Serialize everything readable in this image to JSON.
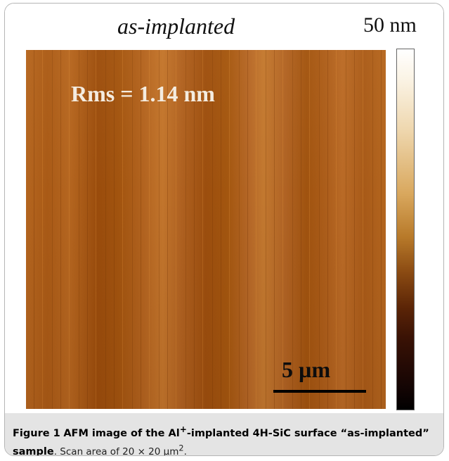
{
  "figure": {
    "panel_title": "as-implanted",
    "colorbar_max_label": "50 nm",
    "rms_label": "Rms = 1.14 nm",
    "scalebar_label": "5 µm"
  },
  "caption": {
    "label": "Figure 1",
    "title_prefix": "AFM image of the Al",
    "title_superscript": "+",
    "title_suffix": "-implanted 4H-SiC surface “as-implanted” sample",
    "rest_prefix": ". Scan area of 20 × 20 µm",
    "rest_superscript": "2",
    "rest_suffix": "."
  },
  "colors": {
    "caption_background": "#e4e4e4",
    "afm_base": "#a85a18"
  }
}
